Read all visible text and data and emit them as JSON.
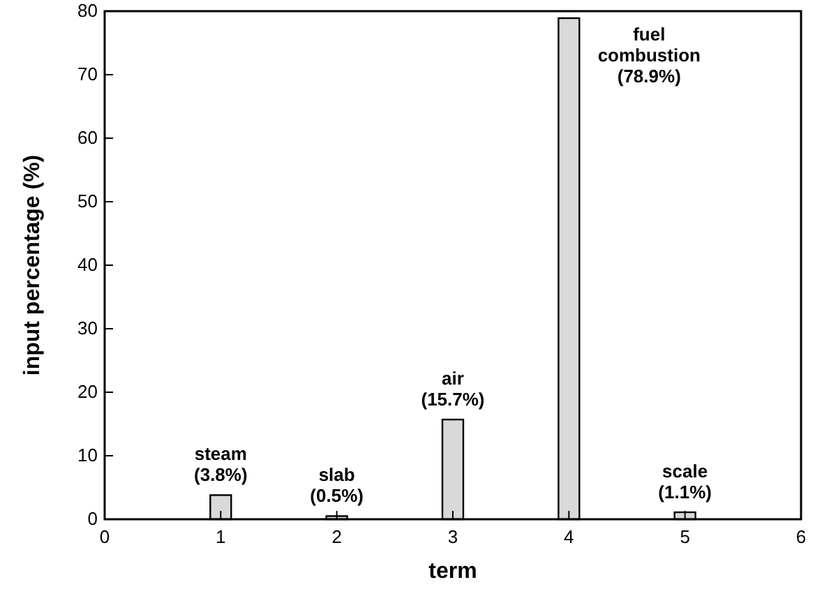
{
  "chart_data": {
    "type": "bar",
    "xlabel": "term",
    "ylabel": "input percentage (%)",
    "x": [
      1,
      2,
      3,
      4,
      5
    ],
    "values": [
      3.8,
      0.5,
      15.7,
      78.9,
      1.1
    ],
    "color": "#d9d9d9",
    "xlim": [
      0,
      6
    ],
    "xticks": [
      0,
      1,
      2,
      3,
      4,
      5,
      6
    ],
    "ylim": [
      0,
      80
    ],
    "yticks": [
      0,
      10,
      20,
      30,
      40,
      50,
      60,
      70,
      80
    ],
    "grid": false,
    "annotations": [
      {
        "text": "steam\n(3.8%)",
        "x": 1,
        "y": 3.8
      },
      {
        "text": "slab\n(0.5%)",
        "x": 2,
        "y": 0.5
      },
      {
        "text": "air\n(15.7%)",
        "x": 3,
        "y": 15.7
      },
      {
        "text": "fuel\ncombustion\n(78.9%)",
        "x": 4,
        "y": 78.9
      },
      {
        "text": "scale\n(1.1%)",
        "x": 5,
        "y": 1.1
      }
    ]
  }
}
